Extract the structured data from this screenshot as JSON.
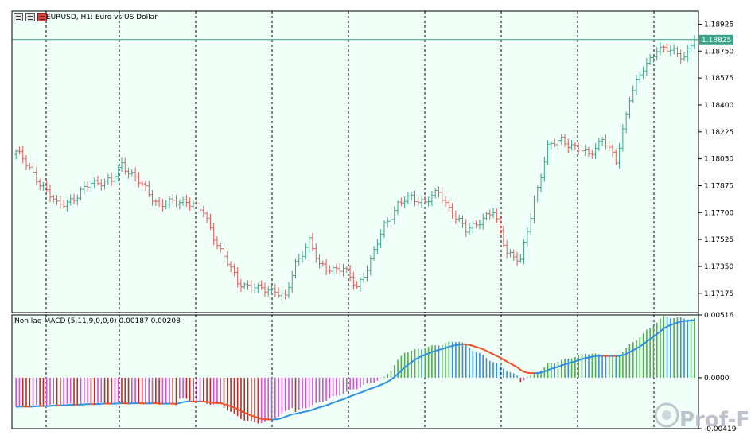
{
  "chart": {
    "symbol_title": "EURUSD, H1:  Euro vs US Dollar",
    "current_price_label": "1.18825",
    "price_axis": {
      "ticks": [
        "1.18925",
        "1.18750",
        "1.18575",
        "1.18400",
        "1.18225",
        "1.18050",
        "1.17875",
        "1.17700",
        "1.17525",
        "1.17350",
        "1.17175"
      ],
      "min": 1.1705,
      "max": 1.1901
    },
    "colors": {
      "background": "#f0fff7",
      "grid_vertical": "#000000",
      "bull_candle": "#3aa38a",
      "bear_candle": "#e05a5a",
      "price_line": "#3aa38a",
      "price_tag_bg": "#3aa38a"
    }
  },
  "indicator": {
    "title": "Non lag MACD (5,11,9,0,0,0) 0.00187 0.00208",
    "axis_ticks": [
      "0.00516",
      "0.0000",
      "-0.00419"
    ],
    "min": -0.00419,
    "max": 0.00516,
    "colors": {
      "hist_up_pos": "#4cb04c",
      "hist_down_pos": "#3a8fd8",
      "hist_down_neg": "#c0282c",
      "hist_up_neg": "#d64fd4",
      "signal_up": "#2e8fe6",
      "signal_down": "#f05020"
    }
  },
  "watermark": {
    "text": "Prof-FX"
  }
}
